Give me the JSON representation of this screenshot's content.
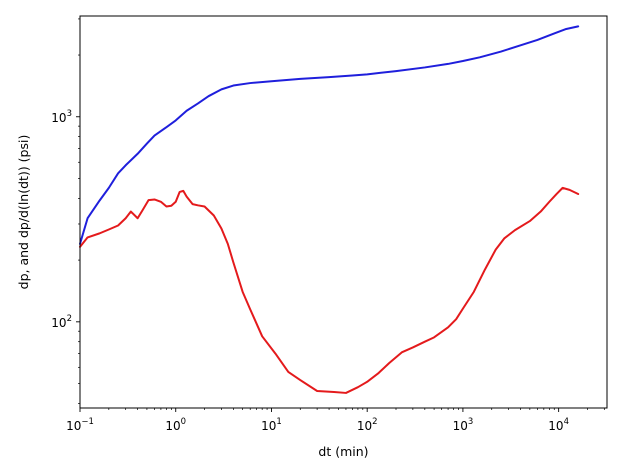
{
  "chart_data": {
    "type": "line",
    "title": "",
    "xlabel": "dt (min)",
    "ylabel": "dp, and dp/d(ln(dt)) (psi)",
    "xscale": "log",
    "yscale": "log",
    "xlim": [
      0.1,
      32000
    ],
    "ylim": [
      38,
      3100
    ],
    "grid": false,
    "x_ticks": [
      {
        "value": 0.1,
        "base": "10",
        "exp": "−1"
      },
      {
        "value": 1,
        "base": "10",
        "exp": "0"
      },
      {
        "value": 10,
        "base": "10",
        "exp": "1"
      },
      {
        "value": 100,
        "base": "10",
        "exp": "2"
      },
      {
        "value": 1000,
        "base": "10",
        "exp": "3"
      },
      {
        "value": 10000,
        "base": "10",
        "exp": "4"
      }
    ],
    "y_ticks": [
      {
        "value": 100,
        "base": "10",
        "exp": "2"
      },
      {
        "value": 1000,
        "base": "10",
        "exp": "3"
      }
    ],
    "series": [
      {
        "color": "#1f1fdc",
        "points": [
          [
            0.1,
            240
          ],
          [
            0.12,
            320
          ],
          [
            0.16,
            390
          ],
          [
            0.2,
            450
          ],
          [
            0.25,
            530
          ],
          [
            0.3,
            580
          ],
          [
            0.4,
            660
          ],
          [
            0.5,
            740
          ],
          [
            0.6,
            810
          ],
          [
            0.8,
            890
          ],
          [
            1.0,
            960
          ],
          [
            1.3,
            1070
          ],
          [
            1.7,
            1160
          ],
          [
            2.2,
            1260
          ],
          [
            3.0,
            1360
          ],
          [
            4.0,
            1420
          ],
          [
            6.0,
            1460
          ],
          [
            10,
            1490
          ],
          [
            20,
            1530
          ],
          [
            40,
            1560
          ],
          [
            70,
            1590
          ],
          [
            100,
            1610
          ],
          [
            200,
            1670
          ],
          [
            400,
            1740
          ],
          [
            700,
            1810
          ],
          [
            1000,
            1870
          ],
          [
            1500,
            1950
          ],
          [
            2500,
            2080
          ],
          [
            4000,
            2230
          ],
          [
            6000,
            2370
          ],
          [
            9000,
            2550
          ],
          [
            12000,
            2680
          ],
          [
            16000,
            2760
          ]
        ]
      },
      {
        "color": "#e41a1c",
        "points": [
          [
            0.1,
            232
          ],
          [
            0.12,
            258
          ],
          [
            0.16,
            270
          ],
          [
            0.2,
            282
          ],
          [
            0.25,
            295
          ],
          [
            0.3,
            320
          ],
          [
            0.34,
            345
          ],
          [
            0.4,
            320
          ],
          [
            0.45,
            350
          ],
          [
            0.52,
            392
          ],
          [
            0.6,
            395
          ],
          [
            0.7,
            385
          ],
          [
            0.8,
            365
          ],
          [
            0.9,
            368
          ],
          [
            1.0,
            385
          ],
          [
            1.1,
            430
          ],
          [
            1.2,
            435
          ],
          [
            1.3,
            408
          ],
          [
            1.5,
            375
          ],
          [
            1.7,
            370
          ],
          [
            2.0,
            365
          ],
          [
            2.5,
            330
          ],
          [
            3.0,
            285
          ],
          [
            3.5,
            240
          ],
          [
            4.0,
            195
          ],
          [
            5.0,
            140
          ],
          [
            6.0,
            115
          ],
          [
            8.0,
            85
          ],
          [
            11,
            70
          ],
          [
            15,
            57
          ],
          [
            20,
            52
          ],
          [
            30,
            46
          ],
          [
            45,
            45.5
          ],
          [
            60,
            45
          ],
          [
            80,
            48
          ],
          [
            100,
            51
          ],
          [
            130,
            56
          ],
          [
            170,
            63
          ],
          [
            230,
            71
          ],
          [
            300,
            75
          ],
          [
            400,
            80
          ],
          [
            500,
            84
          ],
          [
            700,
            94
          ],
          [
            850,
            103
          ],
          [
            1000,
            116
          ],
          [
            1300,
            140
          ],
          [
            1700,
            180
          ],
          [
            2200,
            225
          ],
          [
            2700,
            255
          ],
          [
            3500,
            280
          ],
          [
            5000,
            310
          ],
          [
            6500,
            345
          ],
          [
            8000,
            385
          ],
          [
            9500,
            420
          ],
          [
            11000,
            450
          ],
          [
            13000,
            440
          ],
          [
            16000,
            420
          ]
        ]
      }
    ]
  }
}
